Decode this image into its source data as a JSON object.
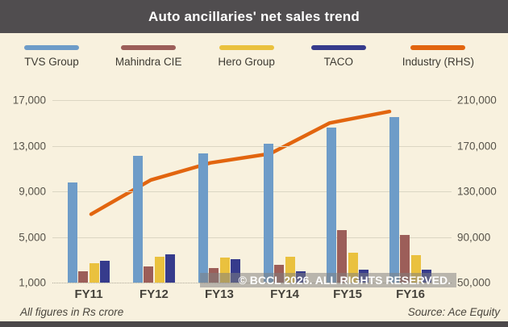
{
  "header": {
    "title": "Auto ancillaries' net sales trend"
  },
  "legend": [
    {
      "label": "TVS Group",
      "color": "#6E9CC8"
    },
    {
      "label": "Mahindra CIE",
      "color": "#9C5E59"
    },
    {
      "label": "Hero Group",
      "color": "#EAC13E"
    },
    {
      "label": "TACO",
      "color": "#363B8C"
    },
    {
      "label": "Industry (RHS)",
      "color": "#E2650F"
    }
  ],
  "chart_data": {
    "type": "bar",
    "subtype": "grouped bars with overlaid line (secondary axis)",
    "categories": [
      "FY11",
      "FY12",
      "FY13",
      "FY14",
      "FY15",
      "FY16"
    ],
    "series": [
      {
        "name": "TVS Group",
        "type": "bar",
        "axis": "left",
        "color": "#6E9CC8",
        "values": [
          9800,
          12100,
          12300,
          13200,
          14600,
          15500
        ]
      },
      {
        "name": "Mahindra CIE",
        "type": "bar",
        "axis": "left",
        "color": "#9C5E59",
        "values": [
          2000,
          2400,
          2250,
          2550,
          5600,
          5200
        ]
      },
      {
        "name": "Hero Group",
        "type": "bar",
        "axis": "left",
        "color": "#EAC13E",
        "values": [
          2700,
          3250,
          3200,
          3300,
          3600,
          3400
        ]
      },
      {
        "name": "TACO",
        "type": "bar",
        "axis": "left",
        "color": "#363B8C",
        "values": [
          2900,
          3500,
          3050,
          2000,
          2100,
          2100
        ]
      },
      {
        "name": "Industry (RHS)",
        "type": "line",
        "axis": "right",
        "color": "#E2650F",
        "values": [
          110000,
          140000,
          155000,
          163000,
          190000,
          200000
        ]
      }
    ],
    "left_axis": {
      "min": 1000,
      "max": 17000,
      "ticks": [
        17000,
        13000,
        9000,
        5000,
        1000
      ],
      "tick_labels": [
        "17,000",
        "13,000",
        "9,000",
        "5,000",
        "1,000"
      ]
    },
    "right_axis": {
      "min": 50000,
      "max": 210000,
      "ticks": [
        210000,
        170000,
        130000,
        90000,
        50000
      ],
      "tick_labels": [
        "210,000",
        "170,000",
        "130,000",
        "90,000",
        "50,000"
      ]
    },
    "grid": true,
    "legend_position": "top",
    "title": "Auto ancillaries' net sales trend"
  },
  "watermark": "© BCCL 2026. ALL RIGHTS RESERVED.",
  "footer": {
    "note": "All figures in Rs crore",
    "source": "Source: Ace Equity"
  }
}
